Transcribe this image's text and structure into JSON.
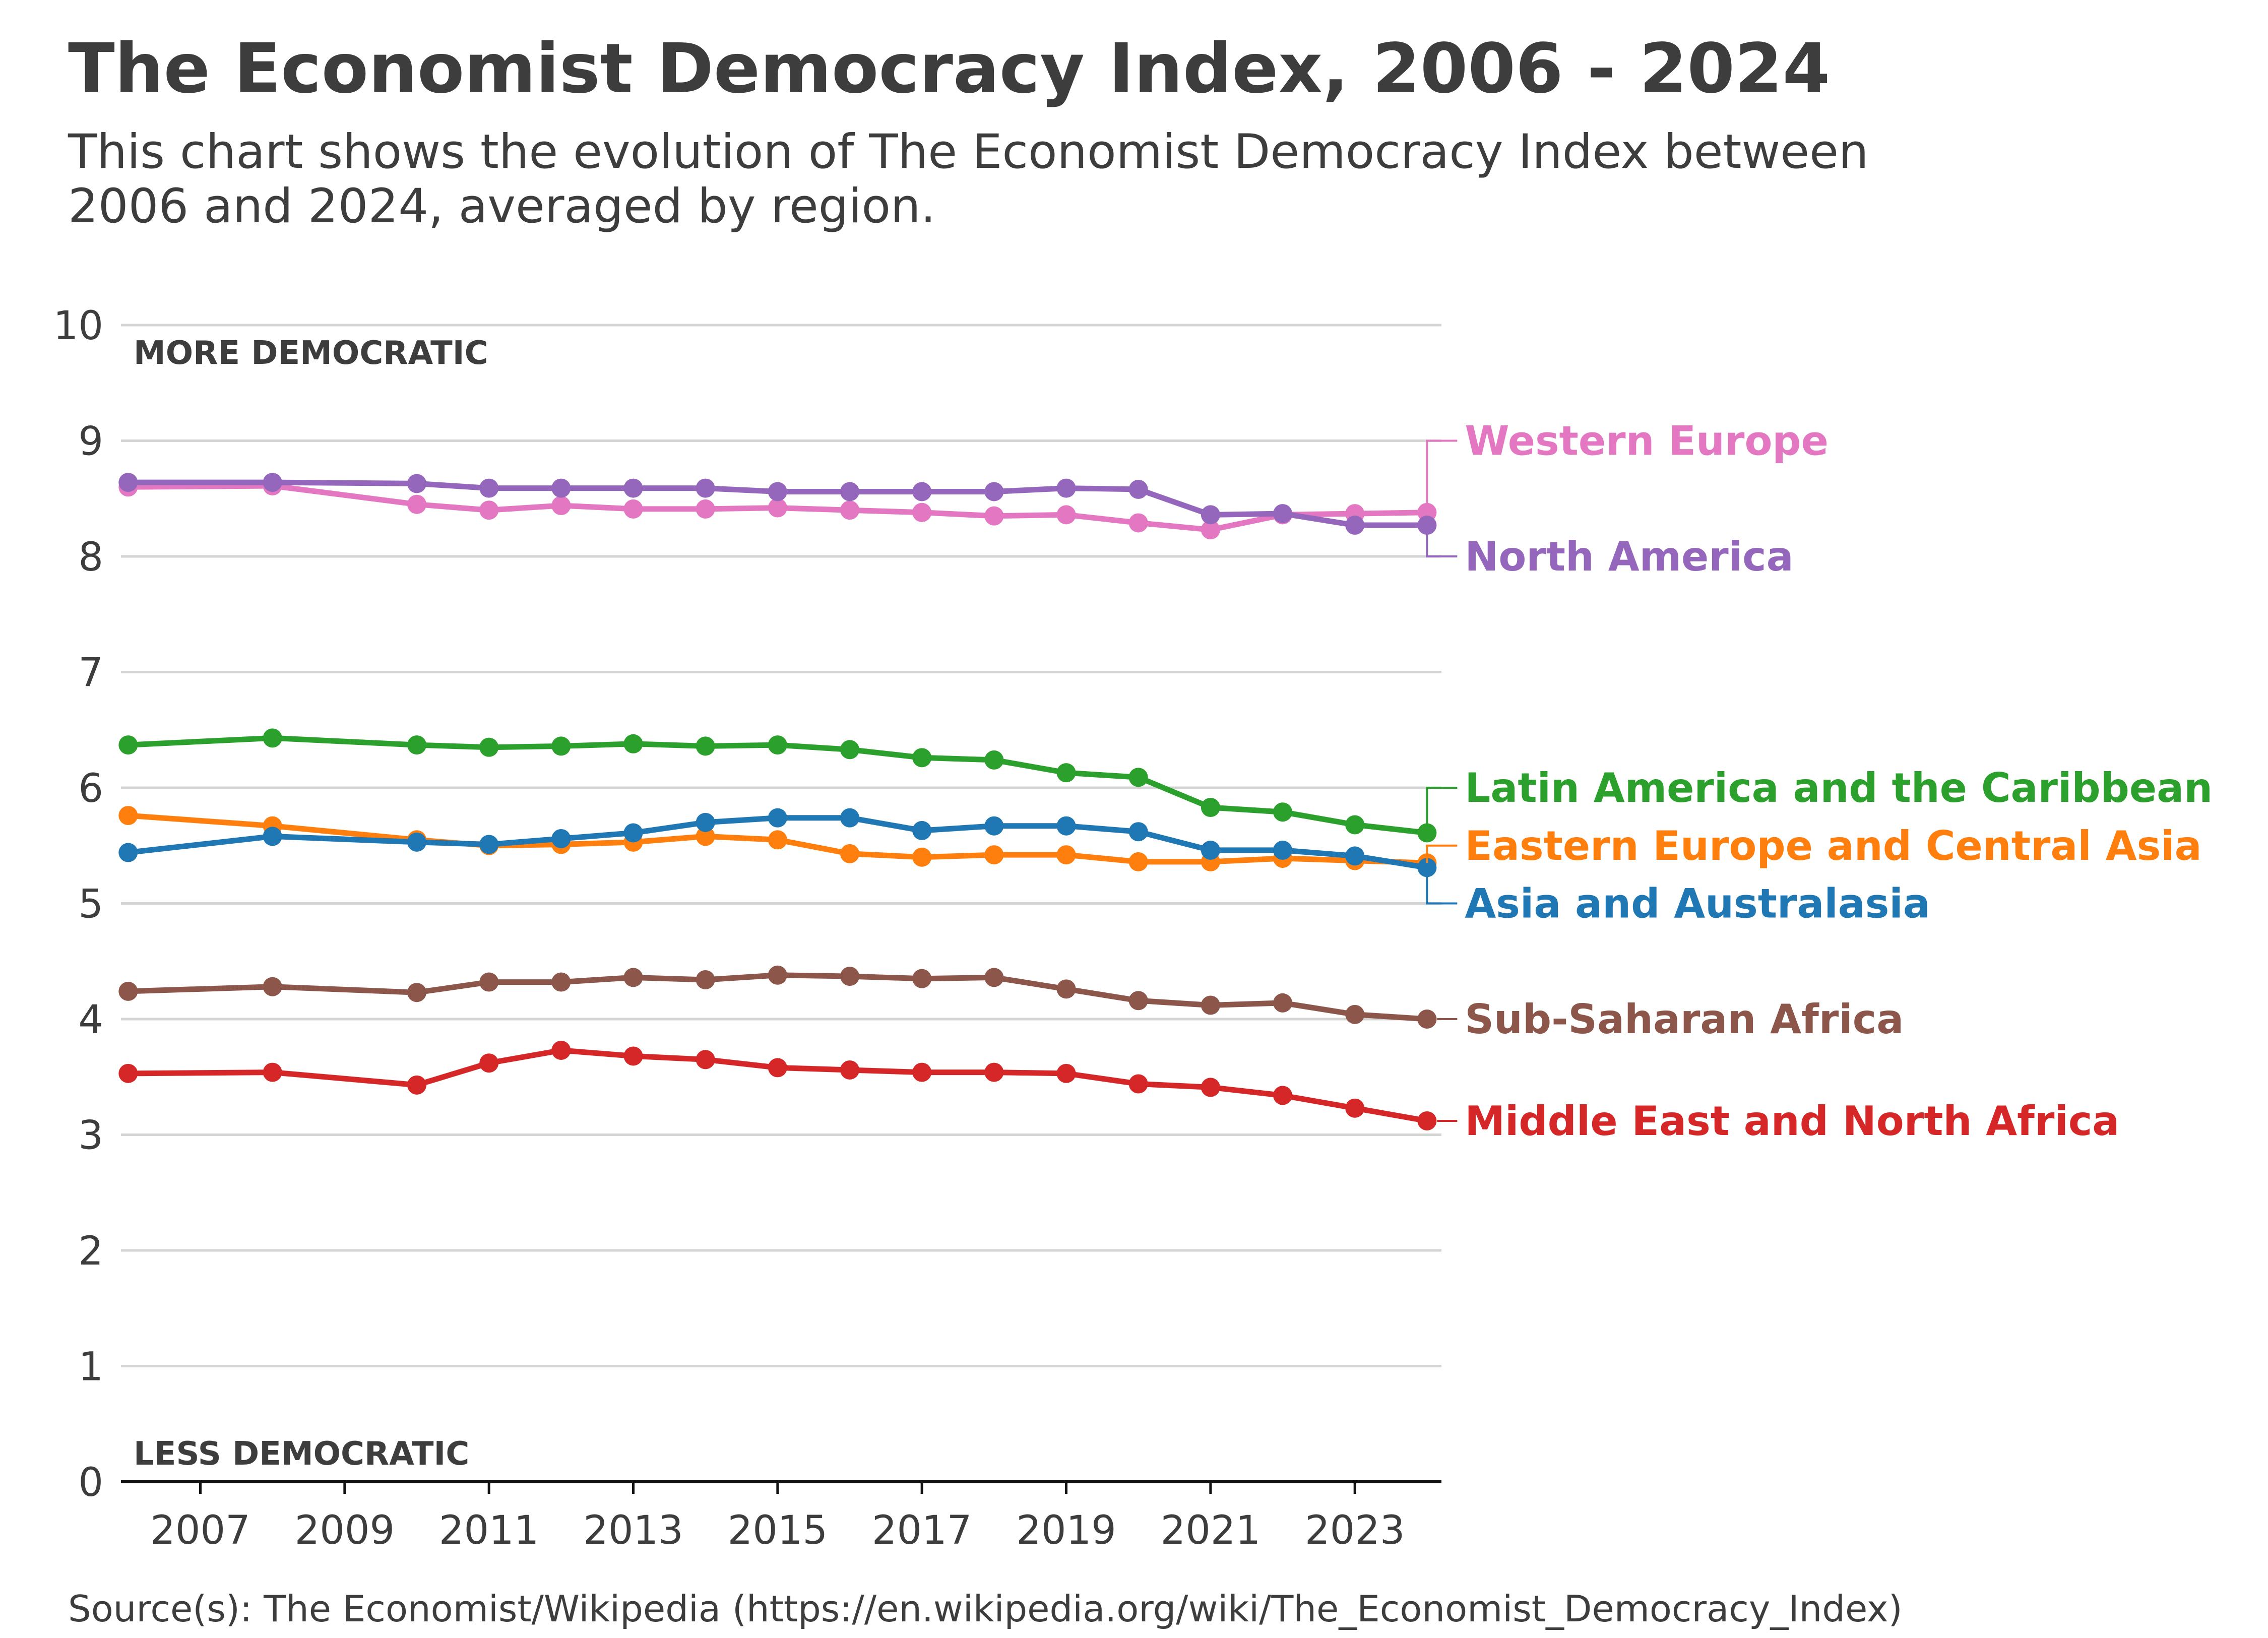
{
  "title": "The Economist Democracy Index, 2006 - 2024",
  "subtitle": "This chart shows the evolution of The Economist Democracy Index between 2006 and 2024, averaged by region.",
  "source": "Source(s): The Economist/Wikipedia (https://en.wikipedia.org/wiki/The_Economist_Democracy_Index)",
  "chart_data": {
    "type": "line",
    "title": "The Economist Democracy Index, 2006 - 2024",
    "xlabel": "",
    "ylabel": "",
    "xlim": [
      2005.9,
      2024.2
    ],
    "ylim": [
      0,
      10
    ],
    "x_ticks": [
      2007,
      2009,
      2011,
      2013,
      2015,
      2017,
      2019,
      2021,
      2023
    ],
    "y_ticks": [
      0,
      1,
      2,
      3,
      4,
      5,
      6,
      7,
      8,
      9,
      10
    ],
    "grid": "horizontal",
    "legend": "direct labels at right",
    "annotations": {
      "top": "MORE DEMOCRATIC",
      "bottom": "LESS DEMOCRATIC"
    },
    "x": [
      2006,
      2008,
      2010,
      2011,
      2012,
      2013,
      2014,
      2015,
      2016,
      2017,
      2018,
      2019,
      2020,
      2021,
      2022,
      2023,
      2024
    ],
    "series": [
      {
        "name": "Western Europe",
        "color": "#e377c2",
        "values": [
          8.6,
          8.61,
          8.45,
          8.4,
          8.44,
          8.41,
          8.41,
          8.42,
          8.4,
          8.38,
          8.35,
          8.36,
          8.29,
          8.23,
          8.36,
          8.37,
          8.38
        ],
        "label_y": 9.0
      },
      {
        "name": "North America",
        "color": "#9467bd",
        "values": [
          8.64,
          8.64,
          8.63,
          8.59,
          8.59,
          8.59,
          8.59,
          8.56,
          8.56,
          8.56,
          8.56,
          8.59,
          8.58,
          8.36,
          8.37,
          8.27,
          8.27
        ],
        "label_y": 8.0
      },
      {
        "name": "Latin America and the Caribbean",
        "color": "#2ca02c",
        "values": [
          6.37,
          6.43,
          6.37,
          6.35,
          6.36,
          6.38,
          6.36,
          6.37,
          6.33,
          6.26,
          6.24,
          6.13,
          6.09,
          5.83,
          5.79,
          5.68,
          5.61
        ],
        "label_y": 6.0
      },
      {
        "name": "Eastern Europe and Central Asia",
        "color": "#ff7f0e",
        "values": [
          5.76,
          5.67,
          5.55,
          5.5,
          5.51,
          5.53,
          5.58,
          5.55,
          5.43,
          5.4,
          5.42,
          5.42,
          5.36,
          5.36,
          5.39,
          5.37,
          5.35
        ],
        "label_y": 5.5
      },
      {
        "name": "Asia and Australasia",
        "color": "#1f77b4",
        "values": [
          5.44,
          5.58,
          5.53,
          5.51,
          5.56,
          5.61,
          5.7,
          5.74,
          5.74,
          5.63,
          5.67,
          5.67,
          5.62,
          5.46,
          5.46,
          5.41,
          5.31
        ],
        "label_y": 5.0
      },
      {
        "name": "Sub-Saharan Africa",
        "color": "#8c564b",
        "values": [
          4.24,
          4.28,
          4.23,
          4.32,
          4.32,
          4.36,
          4.34,
          4.38,
          4.37,
          4.35,
          4.36,
          4.26,
          4.16,
          4.12,
          4.14,
          4.04,
          4.0
        ],
        "label_y": 4.0
      },
      {
        "name": "Middle East and North Africa",
        "color": "#d62728",
        "values": [
          3.53,
          3.54,
          3.43,
          3.62,
          3.73,
          3.68,
          3.65,
          3.58,
          3.56,
          3.54,
          3.54,
          3.53,
          3.44,
          3.41,
          3.34,
          3.23,
          3.12
        ],
        "label_y": 3.12
      }
    ]
  }
}
